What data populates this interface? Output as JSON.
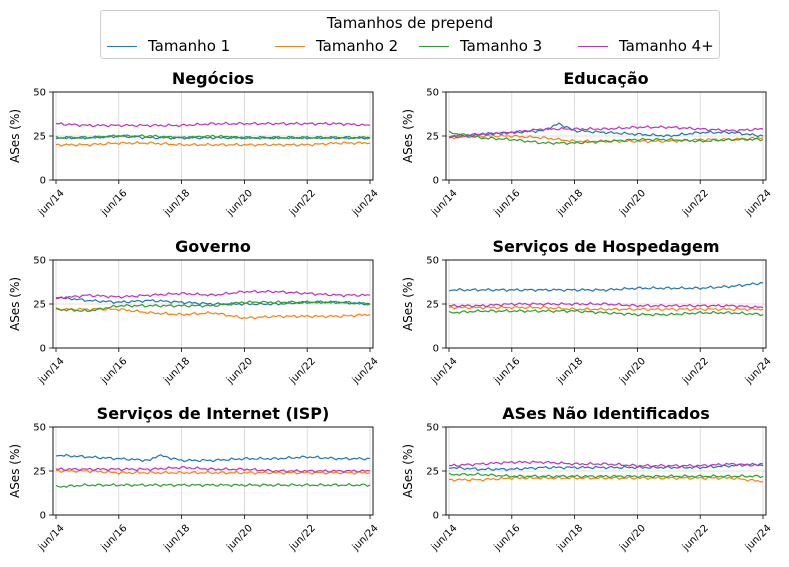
{
  "legend": {
    "title": "Tamanhos de prepend",
    "entries": [
      {
        "label": "Tamanho 1",
        "color": "#1f77b4"
      },
      {
        "label": "Tamanho 2",
        "color": "#ff7f0e"
      },
      {
        "label": "Tamanho 3",
        "color": "#2ca02c"
      },
      {
        "label": "Tamanho 4+",
        "color": "#c030c0"
      }
    ]
  },
  "chart_data": [
    {
      "type": "line",
      "title": "Negócios",
      "ylabel": "ASes (%)",
      "ylim": [
        0,
        50
      ],
      "yticks": [
        0,
        25,
        50
      ],
      "xticks": [
        "jun/14",
        "jun/16",
        "jun/18",
        "jun/20",
        "jun/22",
        "jun/24"
      ],
      "x_range": [
        "2014-06",
        "2024-06"
      ],
      "grid": true,
      "series": [
        {
          "name": "Tamanho 1",
          "x": [
            "2014-06",
            "2015-06",
            "2016-06",
            "2017-06",
            "2018-06",
            "2019-06",
            "2020-06",
            "2021-06",
            "2022-06",
            "2023-06",
            "2024-06"
          ],
          "values": [
            24,
            24,
            25,
            24,
            24,
            24,
            24,
            24,
            24,
            24,
            24
          ]
        },
        {
          "name": "Tamanho 2",
          "x": [
            "2014-06",
            "2015-06",
            "2016-06",
            "2017-06",
            "2018-06",
            "2019-06",
            "2020-06",
            "2021-06",
            "2022-06",
            "2023-06",
            "2024-06"
          ],
          "values": [
            20,
            20,
            21,
            21,
            20,
            20,
            20,
            20,
            20,
            21,
            21
          ]
        },
        {
          "name": "Tamanho 3",
          "x": [
            "2014-06",
            "2015-06",
            "2016-06",
            "2017-06",
            "2018-06",
            "2019-06",
            "2020-06",
            "2021-06",
            "2022-06",
            "2023-06",
            "2024-06"
          ],
          "values": [
            24,
            24,
            25,
            25,
            24,
            25,
            24,
            24,
            24,
            24,
            24
          ]
        },
        {
          "name": "Tamanho 4+",
          "x": [
            "2014-06",
            "2015-06",
            "2016-06",
            "2017-06",
            "2018-06",
            "2019-06",
            "2020-06",
            "2021-06",
            "2022-06",
            "2023-06",
            "2024-06"
          ],
          "values": [
            32,
            31,
            31,
            31,
            31,
            32,
            32,
            32,
            32,
            32,
            31
          ]
        }
      ]
    },
    {
      "type": "line",
      "title": "Educação",
      "ylabel": "ASes (%)",
      "ylim": [
        0,
        50
      ],
      "yticks": [
        0,
        25,
        50
      ],
      "xticks": [
        "jun/14",
        "jun/16",
        "jun/18",
        "jun/20",
        "jun/22",
        "jun/24"
      ],
      "x_range": [
        "2014-06",
        "2024-06"
      ],
      "grid": true,
      "series": [
        {
          "name": "Tamanho 1",
          "x": [
            "2014-06",
            "2015-06",
            "2016-06",
            "2017-06",
            "2017-12",
            "2018-06",
            "2019-06",
            "2020-06",
            "2021-06",
            "2022-06",
            "2023-06",
            "2024-06"
          ],
          "values": [
            25,
            26,
            27,
            28,
            32,
            28,
            27,
            26,
            25,
            27,
            27,
            25
          ]
        },
        {
          "name": "Tamanho 2",
          "x": [
            "2014-06",
            "2015-06",
            "2016-06",
            "2017-06",
            "2018-06",
            "2019-06",
            "2020-06",
            "2021-06",
            "2022-06",
            "2023-06",
            "2024-06"
          ],
          "values": [
            24,
            25,
            25,
            24,
            22,
            22,
            22,
            22,
            23,
            23,
            24
          ]
        },
        {
          "name": "Tamanho 3",
          "x": [
            "2014-06",
            "2015-06",
            "2016-06",
            "2017-06",
            "2018-06",
            "2019-06",
            "2020-06",
            "2021-06",
            "2022-06",
            "2023-06",
            "2024-06"
          ],
          "values": [
            27,
            24,
            23,
            21,
            21,
            22,
            23,
            23,
            22,
            23,
            23
          ]
        },
        {
          "name": "Tamanho 4+",
          "x": [
            "2014-06",
            "2015-06",
            "2016-06",
            "2017-06",
            "2018-06",
            "2019-06",
            "2020-06",
            "2021-06",
            "2022-06",
            "2023-06",
            "2024-06"
          ],
          "values": [
            24,
            26,
            27,
            29,
            29,
            29,
            30,
            30,
            29,
            28,
            29
          ]
        }
      ]
    },
    {
      "type": "line",
      "title": "Governo",
      "ylabel": "ASes (%)",
      "ylim": [
        0,
        50
      ],
      "yticks": [
        0,
        25,
        50
      ],
      "xticks": [
        "jun/14",
        "jun/16",
        "jun/18",
        "jun/20",
        "jun/22",
        "jun/24"
      ],
      "x_range": [
        "2014-06",
        "2024-06"
      ],
      "grid": true,
      "series": [
        {
          "name": "Tamanho 1",
          "x": [
            "2014-06",
            "2015-06",
            "2016-06",
            "2017-06",
            "2018-06",
            "2019-06",
            "2020-06",
            "2021-06",
            "2022-06",
            "2023-06",
            "2024-06"
          ],
          "values": [
            29,
            27,
            26,
            27,
            26,
            25,
            25,
            25,
            26,
            26,
            25
          ]
        },
        {
          "name": "Tamanho 2",
          "x": [
            "2014-06",
            "2015-06",
            "2016-06",
            "2017-06",
            "2018-06",
            "2019-06",
            "2020-06",
            "2021-06",
            "2022-06",
            "2023-06",
            "2024-06"
          ],
          "values": [
            22,
            22,
            22,
            20,
            19,
            20,
            17,
            18,
            18,
            18,
            19
          ]
        },
        {
          "name": "Tamanho 3",
          "x": [
            "2014-06",
            "2015-06",
            "2016-06",
            "2017-06",
            "2018-06",
            "2019-06",
            "2020-06",
            "2021-06",
            "2022-06",
            "2023-06",
            "2024-06"
          ],
          "values": [
            22,
            21,
            24,
            24,
            24,
            24,
            26,
            26,
            26,
            26,
            25
          ]
        },
        {
          "name": "Tamanho 4+",
          "x": [
            "2014-06",
            "2015-06",
            "2016-06",
            "2017-06",
            "2018-06",
            "2019-06",
            "2020-06",
            "2021-06",
            "2022-06",
            "2023-06",
            "2024-06"
          ],
          "values": [
            28,
            30,
            29,
            30,
            31,
            30,
            32,
            32,
            31,
            30,
            30
          ]
        }
      ]
    },
    {
      "type": "line",
      "title": "Serviços de Hospedagem",
      "ylabel": "ASes (%)",
      "ylim": [
        0,
        50
      ],
      "yticks": [
        0,
        25,
        50
      ],
      "xticks": [
        "jun/14",
        "jun/16",
        "jun/18",
        "jun/20",
        "jun/22",
        "jun/24"
      ],
      "x_range": [
        "2014-06",
        "2024-06"
      ],
      "grid": true,
      "series": [
        {
          "name": "Tamanho 1",
          "x": [
            "2014-06",
            "2015-06",
            "2016-06",
            "2017-06",
            "2018-06",
            "2019-06",
            "2020-06",
            "2021-06",
            "2022-06",
            "2023-06",
            "2024-06"
          ],
          "values": [
            33,
            33,
            33,
            33,
            33,
            33,
            34,
            34,
            34,
            35,
            37
          ]
        },
        {
          "name": "Tamanho 2",
          "x": [
            "2014-06",
            "2015-06",
            "2016-06",
            "2017-06",
            "2018-06",
            "2019-06",
            "2020-06",
            "2021-06",
            "2022-06",
            "2023-06",
            "2024-06"
          ],
          "values": [
            23,
            23,
            23,
            23,
            22,
            22,
            22,
            22,
            22,
            22,
            22
          ]
        },
        {
          "name": "Tamanho 3",
          "x": [
            "2014-06",
            "2015-06",
            "2016-06",
            "2017-06",
            "2018-06",
            "2019-06",
            "2020-06",
            "2021-06",
            "2022-06",
            "2023-06",
            "2024-06"
          ],
          "values": [
            20,
            21,
            21,
            21,
            21,
            20,
            19,
            19,
            20,
            20,
            19
          ]
        },
        {
          "name": "Tamanho 4+",
          "x": [
            "2014-06",
            "2015-06",
            "2016-06",
            "2017-06",
            "2018-06",
            "2019-06",
            "2020-06",
            "2021-06",
            "2022-06",
            "2023-06",
            "2024-06"
          ],
          "values": [
            24,
            24,
            25,
            25,
            25,
            25,
            24,
            24,
            24,
            24,
            23
          ]
        }
      ]
    },
    {
      "type": "line",
      "title": "Serviços de Internet (ISP)",
      "ylabel": "ASes (%)",
      "ylim": [
        0,
        50
      ],
      "yticks": [
        0,
        25,
        50
      ],
      "xticks": [
        "jun/14",
        "jun/16",
        "jun/18",
        "jun/20",
        "jun/22",
        "jun/24"
      ],
      "x_range": [
        "2014-06",
        "2024-06"
      ],
      "grid": true,
      "series": [
        {
          "name": "Tamanho 1",
          "x": [
            "2014-06",
            "2015-06",
            "2016-06",
            "2017-06",
            "2017-09",
            "2018-06",
            "2019-06",
            "2020-06",
            "2021-06",
            "2022-06",
            "2023-06",
            "2024-06"
          ],
          "values": [
            34,
            33,
            32,
            31,
            34,
            31,
            31,
            32,
            32,
            33,
            32,
            32
          ]
        },
        {
          "name": "Tamanho 2",
          "x": [
            "2014-06",
            "2015-06",
            "2016-06",
            "2017-06",
            "2018-06",
            "2019-06",
            "2020-06",
            "2021-06",
            "2022-06",
            "2023-06",
            "2024-06"
          ],
          "values": [
            25,
            25,
            24,
            24,
            24,
            24,
            24,
            24,
            24,
            24,
            24
          ]
        },
        {
          "name": "Tamanho 3",
          "x": [
            "2014-06",
            "2015-06",
            "2016-06",
            "2017-06",
            "2018-06",
            "2019-06",
            "2020-06",
            "2021-06",
            "2022-06",
            "2023-06",
            "2024-06"
          ],
          "values": [
            16,
            17,
            17,
            17,
            17,
            17,
            17,
            17,
            17,
            17,
            17
          ]
        },
        {
          "name": "Tamanho 4+",
          "x": [
            "2014-06",
            "2015-06",
            "2016-06",
            "2017-06",
            "2018-06",
            "2019-06",
            "2020-06",
            "2021-06",
            "2022-06",
            "2023-06",
            "2024-06"
          ],
          "values": [
            26,
            26,
            26,
            26,
            27,
            26,
            26,
            25,
            25,
            25,
            25
          ]
        }
      ]
    },
    {
      "type": "line",
      "title": "ASes Não Identificados",
      "ylabel": "ASes (%)",
      "ylim": [
        0,
        50
      ],
      "yticks": [
        0,
        25,
        50
      ],
      "xticks": [
        "jun/14",
        "jun/16",
        "jun/18",
        "jun/20",
        "jun/22",
        "jun/24"
      ],
      "x_range": [
        "2014-06",
        "2024-06"
      ],
      "grid": true,
      "series": [
        {
          "name": "Tamanho 1",
          "x": [
            "2014-06",
            "2015-06",
            "2016-06",
            "2017-06",
            "2018-06",
            "2019-06",
            "2020-06",
            "2021-06",
            "2022-06",
            "2023-06",
            "2024-06"
          ],
          "values": [
            27,
            26,
            26,
            27,
            27,
            27,
            27,
            27,
            27,
            28,
            29
          ]
        },
        {
          "name": "Tamanho 2",
          "x": [
            "2014-06",
            "2015-06",
            "2016-06",
            "2017-06",
            "2018-06",
            "2019-06",
            "2020-06",
            "2021-06",
            "2022-06",
            "2023-06",
            "2024-06"
          ],
          "values": [
            20,
            20,
            21,
            21,
            21,
            21,
            21,
            21,
            21,
            21,
            19
          ]
        },
        {
          "name": "Tamanho 3",
          "x": [
            "2014-06",
            "2015-06",
            "2016-06",
            "2017-06",
            "2018-06",
            "2019-06",
            "2020-06",
            "2021-06",
            "2022-06",
            "2023-06",
            "2024-06"
          ],
          "values": [
            23,
            23,
            22,
            22,
            22,
            22,
            22,
            22,
            22,
            22,
            22
          ]
        },
        {
          "name": "Tamanho 4+",
          "x": [
            "2014-06",
            "2015-06",
            "2016-06",
            "2017-06",
            "2018-06",
            "2019-06",
            "2020-06",
            "2021-06",
            "2022-06",
            "2023-06",
            "2024-06"
          ],
          "values": [
            28,
            29,
            30,
            30,
            29,
            29,
            28,
            28,
            28,
            29,
            28
          ]
        }
      ]
    }
  ]
}
